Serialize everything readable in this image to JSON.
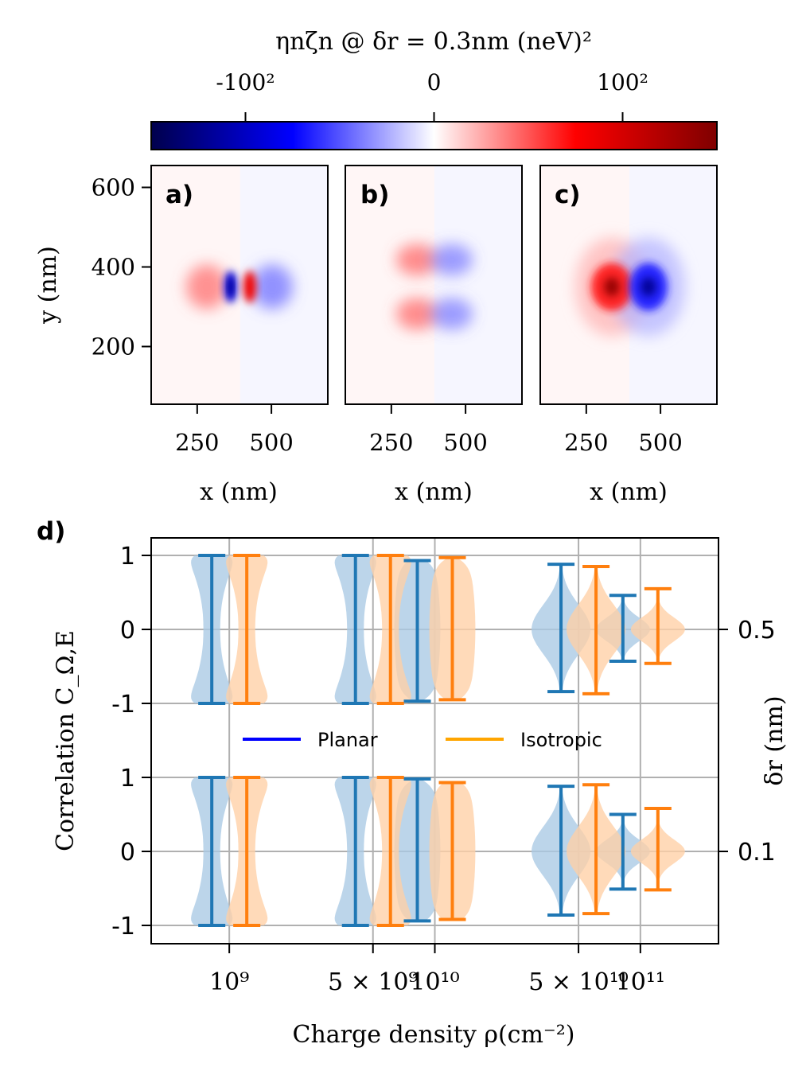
{
  "colorbar": {
    "title": "ηnζn @ δr = 0.3nm (neV)²",
    "ticks": [
      {
        "value": -10000,
        "label": "-100²"
      },
      {
        "value": 0,
        "label": "0"
      },
      {
        "value": 10000,
        "label": "100²"
      }
    ],
    "range": [
      -15000,
      15000
    ],
    "colormap": "seismic"
  },
  "maps": {
    "y_label": "y (nm)",
    "x_label": "x (nm)",
    "x_range": [
      95,
      690
    ],
    "y_range": [
      55,
      655
    ],
    "x_ticks": [
      250,
      500
    ],
    "y_ticks": [
      200,
      400,
      600
    ],
    "center": [
      395,
      350
    ],
    "panels": [
      {
        "tag": "a)",
        "pattern": "quadrupole-x",
        "background_split": "left-red-right-blue-faint"
      },
      {
        "tag": "b)",
        "pattern": "four-lobe-diagonal",
        "background_split": "left-red-right-blue-faint"
      },
      {
        "tag": "c)",
        "pattern": "dipole-x",
        "background_split": "left-red-right-blue-faint"
      }
    ]
  },
  "chart_data": {
    "type": "violin",
    "panel_tag": "d)",
    "xlabel": "Charge density ρ(cm⁻²)",
    "ylabel": "Correlation C_Ω,E",
    "right_axis_label": "δr (nm)",
    "x_scale": "log",
    "x_values": [
      1000000000.0,
      5000000000.0,
      10000000000.0,
      50000000000.0,
      100000000000.0
    ],
    "x_tick_labels": [
      "10⁹",
      "5 × 10⁹",
      "10¹⁰",
      "5 × 10¹⁰",
      "10¹¹"
    ],
    "y_tick_labels": [
      "1",
      "0",
      "-1"
    ],
    "legend": {
      "placement": "center",
      "entries": [
        {
          "name": "Planar",
          "color": "#0000ff"
        },
        {
          "name": "Isotropic",
          "color": "#ffa500"
        }
      ]
    },
    "grid": true,
    "rows": [
      {
        "dr": "0.5",
        "series": [
          {
            "name": "Planar",
            "color": "#1f77b4",
            "fill": "#a9c9e4",
            "min": [
              -1.0,
              -1.0,
              -0.97,
              -0.84,
              -0.43
            ],
            "max": [
              1.0,
              1.0,
              0.93,
              0.88,
              0.46
            ],
            "shape": [
              "bimodal",
              "bimodal",
              "flat",
              "centered",
              "narrow"
            ]
          },
          {
            "name": "Isotropic",
            "color": "#ff7f0e",
            "fill": "#ffcfa5",
            "min": [
              -1.0,
              -1.0,
              -0.95,
              -0.87,
              -0.46
            ],
            "max": [
              1.0,
              1.0,
              0.97,
              0.85,
              0.55
            ],
            "shape": [
              "bimodal",
              "bimodal",
              "flat",
              "centered",
              "narrow"
            ]
          }
        ]
      },
      {
        "dr": "0.1",
        "series": [
          {
            "name": "Planar",
            "color": "#1f77b4",
            "fill": "#a9c9e4",
            "min": [
              -1.0,
              -1.0,
              -0.94,
              -0.86,
              -0.51
            ],
            "max": [
              1.0,
              1.0,
              0.98,
              0.88,
              0.5
            ],
            "shape": [
              "bimodal",
              "bimodal",
              "flat",
              "centered",
              "narrow"
            ]
          },
          {
            "name": "Isotropic",
            "color": "#ff7f0e",
            "fill": "#ffcfa5",
            "min": [
              -1.0,
              -1.0,
              -0.92,
              -0.84,
              -0.52
            ],
            "max": [
              1.0,
              1.0,
              0.93,
              0.9,
              0.58
            ],
            "shape": [
              "bimodal",
              "bimodal",
              "flat",
              "centered",
              "narrow"
            ]
          }
        ]
      }
    ]
  }
}
